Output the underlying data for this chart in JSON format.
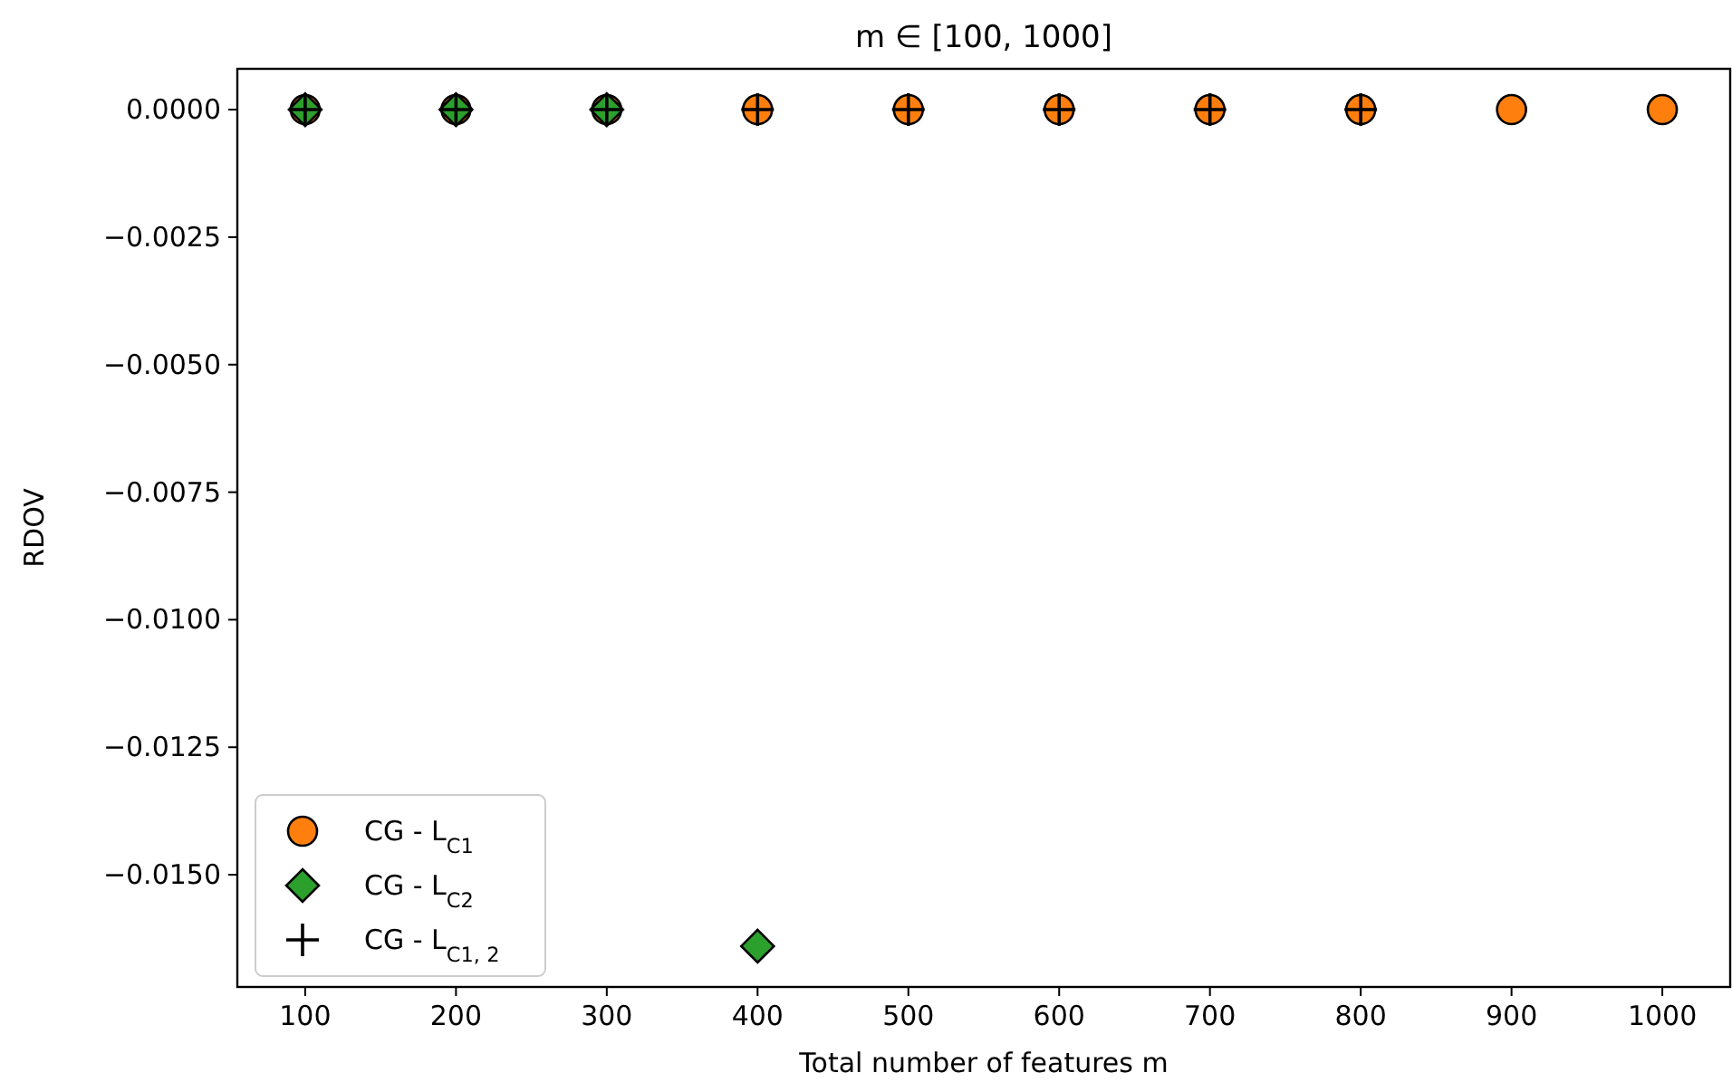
{
  "chart_data": {
    "type": "scatter",
    "title": "m ∈ [100, 1000]",
    "xlabel": "Total number of features m",
    "ylabel": "RDOV",
    "xlim": [
      55,
      1045
    ],
    "xticks": [
      100,
      200,
      300,
      400,
      500,
      600,
      700,
      800,
      900,
      1000
    ],
    "ylim": [
      -0.0172,
      0.0008
    ],
    "yticks": [
      {
        "value": 0,
        "label": "0.0000"
      },
      {
        "value": -0.0025,
        "label": "−0.0025"
      },
      {
        "value": -0.005,
        "label": "−0.0050"
      },
      {
        "value": -0.0075,
        "label": "−0.0075"
      },
      {
        "value": -0.01,
        "label": "−0.0100"
      },
      {
        "value": -0.0125,
        "label": "−0.0125"
      },
      {
        "value": -0.015,
        "label": "−0.0150"
      }
    ],
    "grid": false,
    "legend": "bottom left",
    "series": [
      {
        "name": "CG - L$_{C1}$",
        "color": "#ff7f0e",
        "marker": "circle",
        "x": [
          100,
          200,
          300,
          400,
          500,
          600,
          700,
          800,
          900,
          1000
        ],
        "values": [
          0,
          0,
          0,
          0,
          0,
          0,
          0,
          0,
          0,
          0
        ]
      },
      {
        "name": "CG - L$_{C2}$",
        "color": "#2ca02c",
        "marker": "diamond",
        "x": [
          100,
          200,
          300,
          400
        ],
        "values": [
          0,
          0,
          0,
          -0.0164
        ]
      },
      {
        "name": "CG - L$_{C1, 2}$",
        "color": "#000000",
        "marker": "cross",
        "x": [
          100,
          200,
          300,
          400,
          500,
          600,
          700,
          800
        ],
        "values": [
          0,
          0,
          0,
          0,
          0,
          0,
          0,
          0
        ]
      }
    ]
  }
}
